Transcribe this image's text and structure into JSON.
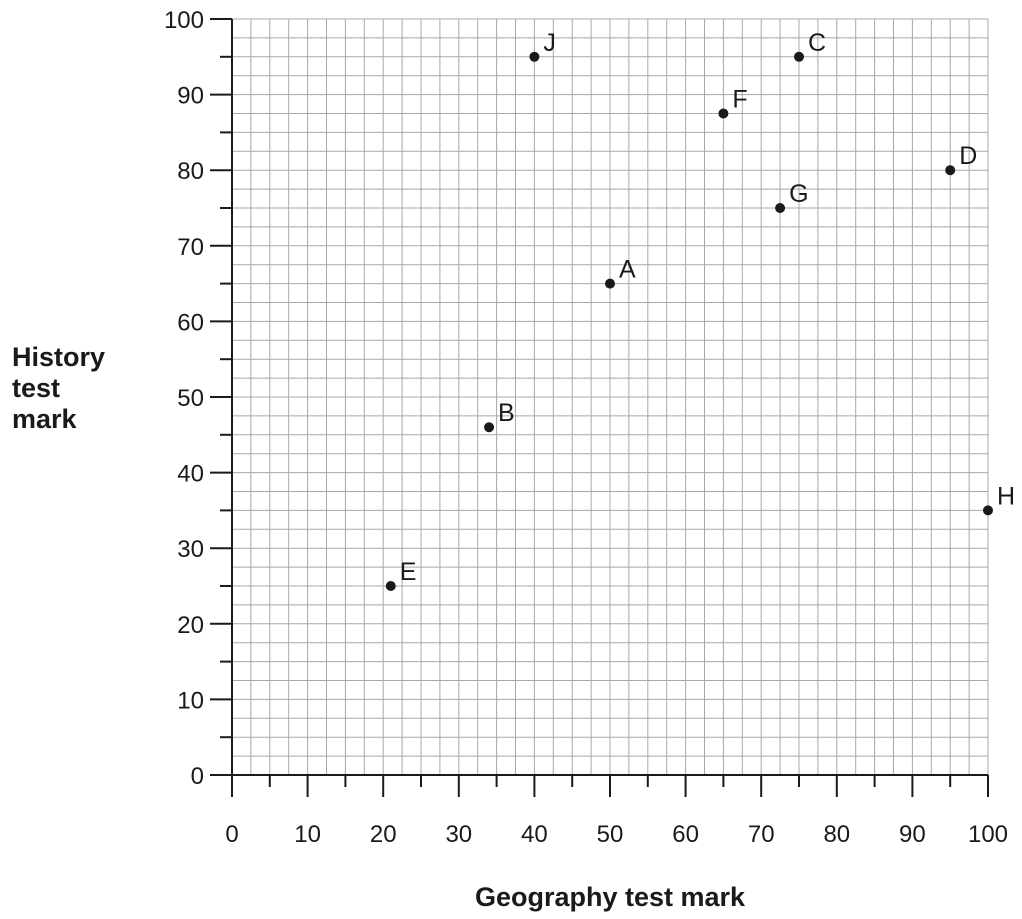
{
  "chart_data": {
    "type": "scatter",
    "title": "",
    "xlabel": "Geography test mark",
    "ylabel_lines": [
      "History",
      "test",
      "mark"
    ],
    "xlim": [
      0,
      100
    ],
    "ylim": [
      0,
      100
    ],
    "major_step": 10,
    "minor_step": 5,
    "grid": true,
    "x_ticks": [
      "0",
      "10",
      "20",
      "30",
      "40",
      "50",
      "60",
      "70",
      "80",
      "90",
      "100"
    ],
    "y_ticks": [
      "0",
      "10",
      "20",
      "30",
      "40",
      "50",
      "60",
      "70",
      "80",
      "90",
      "100"
    ],
    "points": [
      {
        "label": "A",
        "x": 50,
        "y": 65
      },
      {
        "label": "B",
        "x": 34,
        "y": 46
      },
      {
        "label": "C",
        "x": 75,
        "y": 95
      },
      {
        "label": "D",
        "x": 95,
        "y": 80
      },
      {
        "label": "E",
        "x": 21,
        "y": 25
      },
      {
        "label": "F",
        "x": 65,
        "y": 87.5
      },
      {
        "label": "G",
        "x": 72.5,
        "y": 75
      },
      {
        "label": "H",
        "x": 100,
        "y": 35
      },
      {
        "label": "J",
        "x": 40,
        "y": 95
      }
    ],
    "colors": {
      "grid": "#a8a8a8",
      "axis": "#1a1a1a",
      "point": "#1a1a1a"
    }
  }
}
